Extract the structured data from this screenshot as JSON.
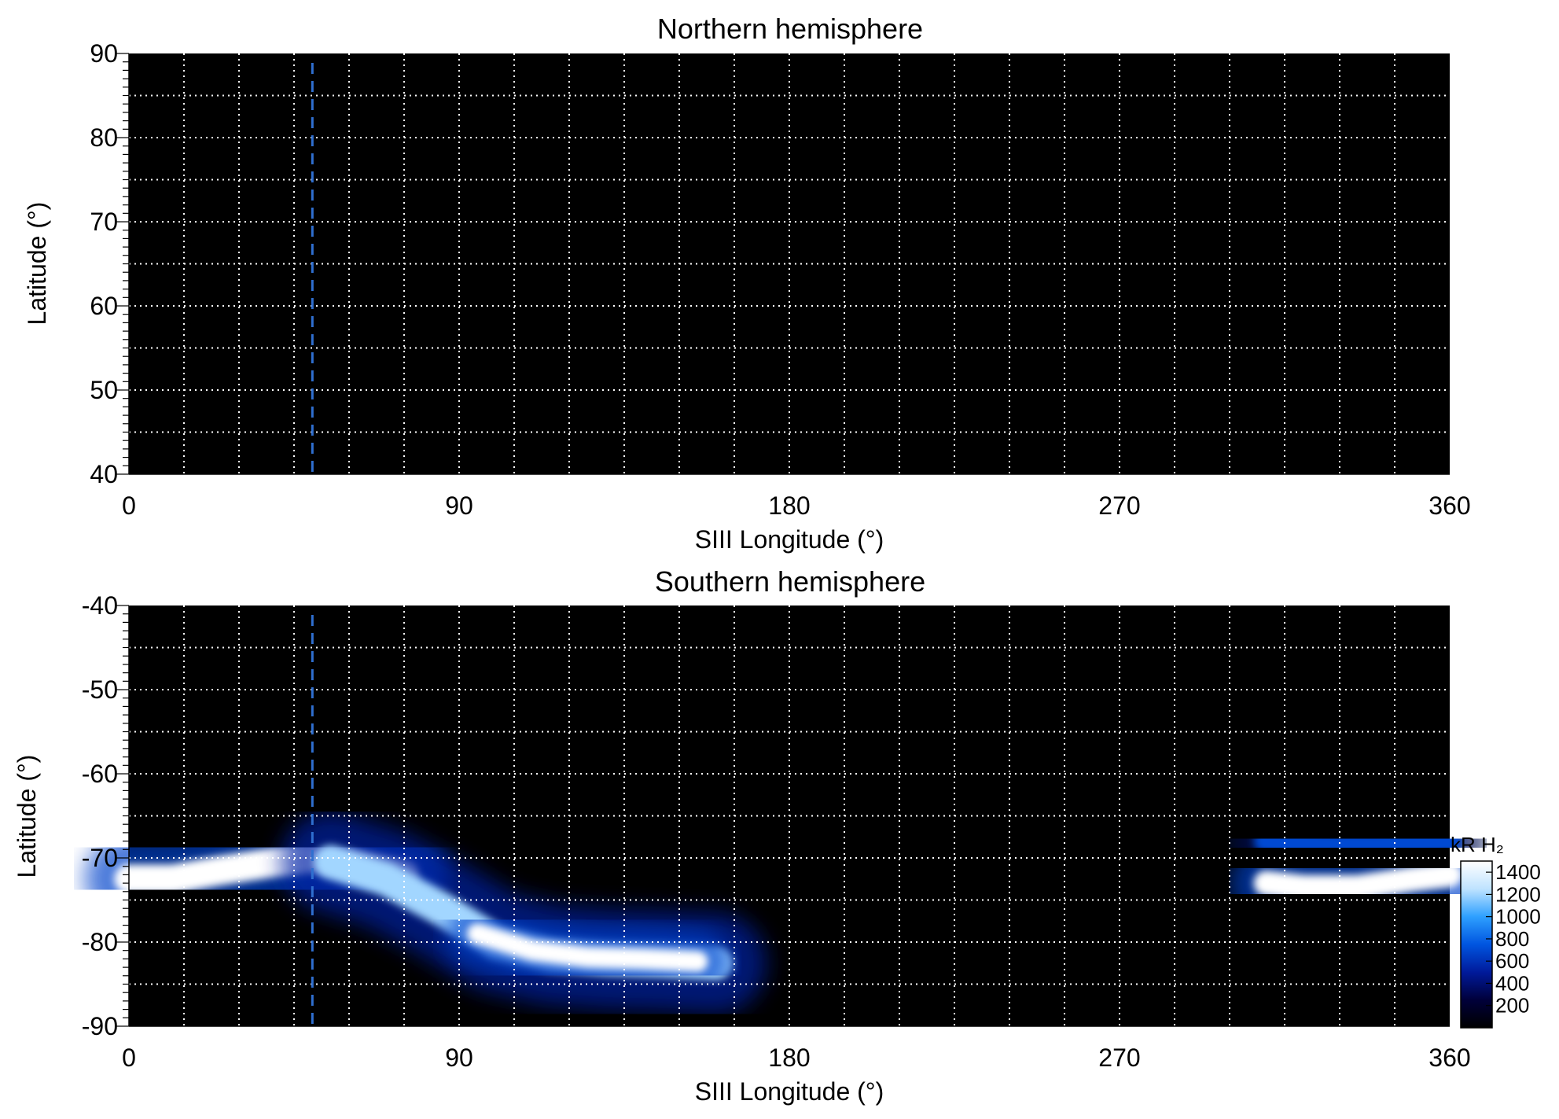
{
  "chart_data": [
    {
      "type": "heatmap",
      "title": "Northern hemisphere",
      "xlabel": "SIII Longitude (°)",
      "ylabel": "Latitude (°)",
      "xlim": [
        0,
        360
      ],
      "ylim": [
        40,
        90
      ],
      "xticks": [
        0,
        90,
        180,
        270,
        360
      ],
      "yticks": [
        40,
        50,
        60,
        70,
        80,
        90
      ],
      "grid": true,
      "grid_x_spacing": 15,
      "grid_y_spacing": 5,
      "marker_line": {
        "x": 50,
        "style": "dashed",
        "color": "#2f6fd0"
      },
      "features": []
    },
    {
      "type": "heatmap",
      "title": "Southern hemisphere",
      "xlabel": "SIII Longitude (°)",
      "ylabel": "Latitude (°)",
      "xlim": [
        0,
        360
      ],
      "ylim": [
        -90,
        -40
      ],
      "xticks": [
        0,
        90,
        180,
        270,
        360
      ],
      "yticks": [
        -40,
        -50,
        -60,
        -70,
        -80,
        -90
      ],
      "grid": true,
      "grid_x_spacing": 15,
      "grid_y_spacing": 5,
      "marker_line": {
        "x": 50,
        "style": "dashed",
        "color": "#2f6fd0"
      },
      "features": [
        {
          "lon": [
            0,
            12,
            25,
            40,
            50,
            60,
            75
          ],
          "lat": [
            -72.5,
            -72.5,
            -71.5,
            -70.5,
            -70,
            -70.5,
            -72
          ],
          "intensity": 1500,
          "width_deg": 3.5
        },
        {
          "lon": [
            55,
            70,
            85,
            100,
            115,
            130,
            145,
            160
          ],
          "lat": [
            -70.5,
            -72.5,
            -76,
            -80,
            -81.5,
            -82,
            -82.2,
            -82.5
          ],
          "intensity": 1200,
          "width_deg": 4
        },
        {
          "lon": [
            95,
            110,
            125,
            140,
            155
          ],
          "lat": [
            -79,
            -81,
            -81.8,
            -82,
            -82.3
          ],
          "intensity": 1500,
          "width_deg": 2.5
        },
        {
          "lon": [
            310,
            320,
            335,
            350,
            360
          ],
          "lat": [
            -73,
            -73.5,
            -73.5,
            -72.5,
            -72
          ],
          "intensity": 1500,
          "width_deg": 3
        },
        {
          "lon": [
            310,
            325,
            340,
            360
          ],
          "lat": [
            -68,
            -68.5,
            -68.5,
            -68
          ],
          "intensity": 700,
          "width_deg": 3
        }
      ],
      "colorbar": {
        "label": "kR H₂",
        "ticks": [
          200,
          400,
          600,
          800,
          1000,
          1200,
          1400
        ],
        "range": [
          0,
          1500
        ],
        "colors": [
          "#000000",
          "#00003a",
          "#001a9a",
          "#0055e0",
          "#2ea0ff",
          "#bfe3ff",
          "#ffffff"
        ]
      }
    }
  ]
}
